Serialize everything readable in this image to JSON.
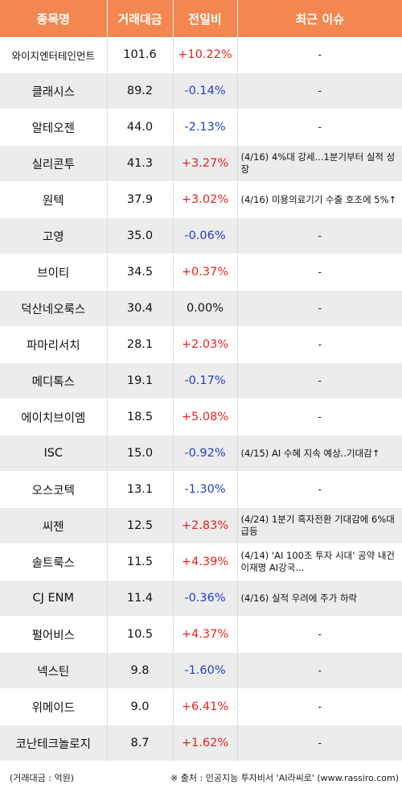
{
  "header": {
    "col_name": "종목명",
    "col_volume": "거래대금",
    "col_change": "전일비",
    "col_issue": "최근 이슈"
  },
  "rows": [
    {
      "name": "와이지엔터테인먼트",
      "volume": "101.6",
      "change": "+10.22%",
      "dir": "up",
      "issue": "-"
    },
    {
      "name": "클래시스",
      "volume": "89.2",
      "change": "-0.14%",
      "dir": "down",
      "issue": "-"
    },
    {
      "name": "알테오젠",
      "volume": "44.0",
      "change": "-2.13%",
      "dir": "down",
      "issue": "-"
    },
    {
      "name": "실리콘투",
      "volume": "41.3",
      "change": "+3.27%",
      "dir": "up",
      "issue": "(4/16) 4%대 강세...1분기부터 실적 성장"
    },
    {
      "name": "원텍",
      "volume": "37.9",
      "change": "+3.02%",
      "dir": "up",
      "issue": "(4/16) 미용의료기기 수출 호조에 5%↑"
    },
    {
      "name": "고영",
      "volume": "35.0",
      "change": "-0.06%",
      "dir": "down",
      "issue": "-"
    },
    {
      "name": "브이티",
      "volume": "34.5",
      "change": "+0.37%",
      "dir": "up",
      "issue": "-"
    },
    {
      "name": "덕산네오룩스",
      "volume": "30.4",
      "change": "0.00%",
      "dir": "flat",
      "issue": "-"
    },
    {
      "name": "파마리서치",
      "volume": "28.1",
      "change": "+2.03%",
      "dir": "up",
      "issue": "-"
    },
    {
      "name": "메디톡스",
      "volume": "19.1",
      "change": "-0.17%",
      "dir": "down",
      "issue": "-"
    },
    {
      "name": "에이치브이엠",
      "volume": "18.5",
      "change": "+5.08%",
      "dir": "up",
      "issue": "-"
    },
    {
      "name": "ISC",
      "volume": "15.0",
      "change": "-0.92%",
      "dir": "down",
      "issue": "(4/15) AI 수혜 지속 예상..기대감↑"
    },
    {
      "name": "오스코텍",
      "volume": "13.1",
      "change": "-1.30%",
      "dir": "down",
      "issue": "-"
    },
    {
      "name": "씨젠",
      "volume": "12.5",
      "change": "+2.83%",
      "dir": "up",
      "issue": "(4/24) 1분기 흑자전환 기대감에 6%대 급등"
    },
    {
      "name": "솔트룩스",
      "volume": "11.5",
      "change": "+4.39%",
      "dir": "up",
      "issue": "(4/14) 'AI 100조 투자 시대' 공약 내건 이재명 AI강국..."
    },
    {
      "name": "CJ ENM",
      "volume": "11.4",
      "change": "-0.36%",
      "dir": "down",
      "issue": "(4/16) 실적 우려에 주가 하락"
    },
    {
      "name": "펄어비스",
      "volume": "10.5",
      "change": "+4.37%",
      "dir": "up",
      "issue": "-"
    },
    {
      "name": "넥스틴",
      "volume": "9.8",
      "change": "-1.60%",
      "dir": "down",
      "issue": "-"
    },
    {
      "name": "위메이드",
      "volume": "9.0",
      "change": "+6.41%",
      "dir": "up",
      "issue": "-"
    },
    {
      "name": "코난테크놀로지",
      "volume": "8.7",
      "change": "+1.62%",
      "dir": "up",
      "issue": "-"
    }
  ],
  "footer": {
    "unit_note": "(거래대금 : 억원)",
    "source_note": "※ 출처 : 인공지능 투자비서 'AI라씨로' (www.rassiro.com)"
  },
  "colors": {
    "header_bg": "#f4874f",
    "up": "#e8231e",
    "down": "#1f3fd1",
    "stripe": "#ececec"
  }
}
